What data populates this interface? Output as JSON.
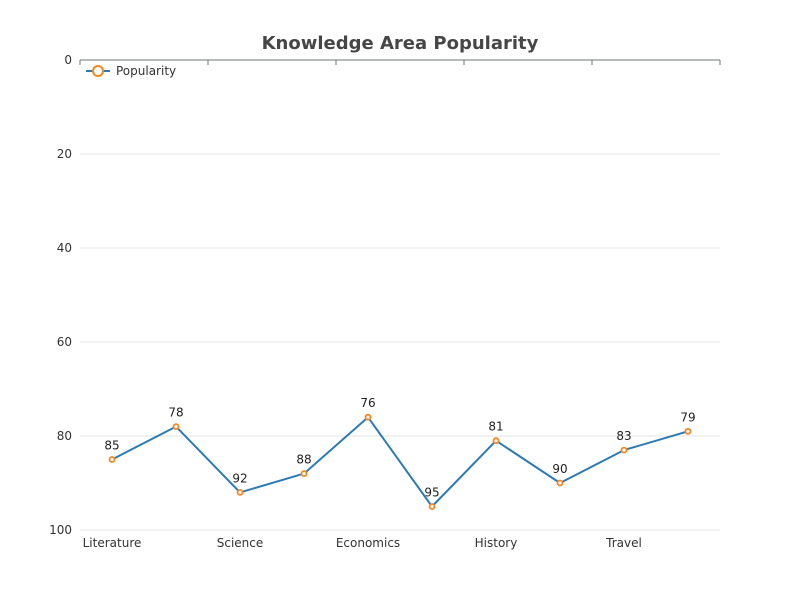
{
  "chart_data": {
    "type": "line",
    "title": "Knowledge Area Popularity",
    "xlabel": "",
    "ylabel": "",
    "categories": [
      "Literature",
      "",
      "Science",
      "",
      "Economics",
      "",
      "History",
      "",
      "Travel",
      ""
    ],
    "x_tick_labels": [
      "Literature",
      "Science",
      "Economics",
      "History",
      "Travel"
    ],
    "series": [
      {
        "name": "Popularity",
        "values": [
          85,
          78,
          92,
          88,
          76,
          95,
          81,
          90,
          83,
          79
        ]
      }
    ],
    "ylim": [
      0,
      100
    ],
    "y_inverted": true,
    "y_ticks": [
      0,
      20,
      40,
      60,
      80,
      100
    ],
    "grid": true,
    "legend_position": "top-left",
    "line_color": "#2c7bb6",
    "marker_color": "#f5871f",
    "data_labels": true
  }
}
